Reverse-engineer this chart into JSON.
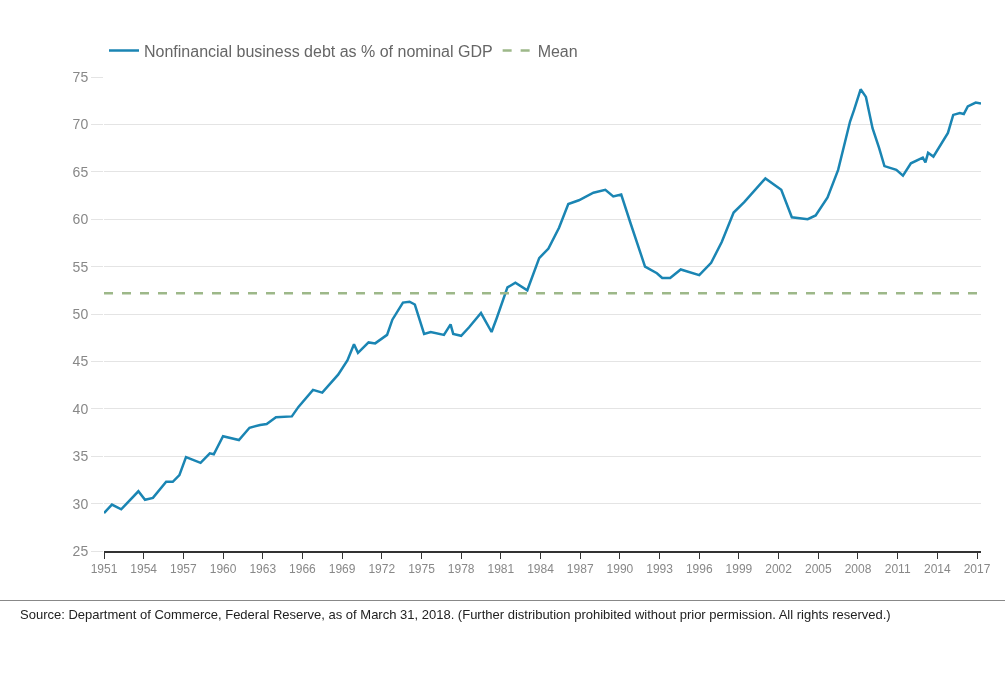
{
  "chart_data": {
    "type": "line",
    "x": [
      1951.0,
      1951.6,
      1952.3,
      1953.6,
      1954.1,
      1954.7,
      1955.7,
      1956.2,
      1956.7,
      1957.2,
      1958.3,
      1959.0,
      1959.3,
      1960.0,
      1961.2,
      1962.0,
      1962.8,
      1963.3,
      1964.0,
      1965.2,
      1965.7,
      1966.8,
      1967.5,
      1968.7,
      1969.4,
      1969.9,
      1970.2,
      1971.0,
      1971.5,
      1972.4,
      1972.8,
      1973.6,
      1974.1,
      1974.5,
      1975.2,
      1975.7,
      1976.7,
      1977.2,
      1977.4,
      1978.0,
      1978.6,
      1979.5,
      1980.3,
      1980.7,
      1981.5,
      1982.1,
      1983.0,
      1983.9,
      1984.6,
      1985.4,
      1986.1,
      1986.9,
      1988.0,
      1988.9,
      1989.5,
      1990.1,
      1990.8,
      1991.9,
      1992.8,
      1993.2,
      1993.8,
      1994.6,
      1996.0,
      1996.9,
      1997.7,
      1998.6,
      1999.4,
      2001.0,
      2002.2,
      2003.0,
      2004.2,
      2004.8,
      2005.7,
      2006.5,
      2007.4,
      2007.7,
      2008.2,
      2008.6,
      2009.1,
      2009.6,
      2010.0,
      2010.9,
      2011.4,
      2012.0,
      2012.9,
      2013.1,
      2013.3,
      2013.7,
      2014.8,
      2015.2,
      2015.7,
      2016.0,
      2016.3,
      2016.9,
      2017.3
    ],
    "series": [
      {
        "name": "Nonfinancial business debt as % of nominal GDP",
        "color": "#1a85b3",
        "values": [
          29.0,
          29.9,
          29.4,
          31.3,
          30.4,
          30.6,
          32.3,
          32.3,
          33.0,
          34.9,
          34.3,
          35.3,
          35.2,
          37.1,
          36.7,
          38.0,
          38.3,
          38.4,
          39.1,
          39.2,
          40.2,
          42.0,
          41.7,
          43.6,
          45.1,
          46.8,
          45.9,
          47.0,
          46.9,
          47.8,
          49.4,
          51.2,
          51.3,
          51.0,
          47.9,
          48.1,
          47.8,
          48.9,
          47.9,
          47.7,
          48.6,
          50.1,
          48.1,
          49.6,
          52.8,
          53.3,
          52.5,
          55.9,
          56.9,
          59.1,
          61.6,
          62.0,
          62.8,
          63.1,
          62.4,
          62.6,
          59.6,
          55.0,
          54.3,
          53.8,
          53.8,
          54.7,
          54.1,
          55.4,
          57.6,
          60.7,
          61.8,
          64.3,
          63.1,
          60.2,
          60.0,
          60.4,
          62.3,
          65.2,
          70.3,
          71.5,
          73.7,
          72.9,
          69.6,
          67.5,
          65.6,
          65.2,
          64.6,
          65.9,
          66.5,
          66.0,
          67.0,
          66.6,
          69.1,
          71.0,
          71.2,
          71.1,
          71.9,
          72.3,
          72.2
        ]
      }
    ],
    "ref_lines": [
      {
        "axis": "y",
        "value": 52.2,
        "label": "Mean",
        "color": "#9db889",
        "line_style": "dashed"
      }
    ],
    "xlim": [
      1951,
      2017.3
    ],
    "xticks": [
      1951,
      1954,
      1957,
      1960,
      1963,
      1966,
      1969,
      1972,
      1975,
      1978,
      1981,
      1984,
      1987,
      1990,
      1993,
      1996,
      1999,
      2002,
      2005,
      2008,
      2011,
      2014,
      2017
    ],
    "ylim": [
      25,
      75
    ],
    "yticks": [
      25,
      30,
      35,
      40,
      45,
      50,
      55,
      60,
      65,
      70,
      75
    ],
    "grid": "y",
    "legend": "top left",
    "marker": "none",
    "line_style": "solid",
    "annotations": [
      "Source: Department of Commerce, Federal Reserve, as of March 31, 2018. (Further distribution prohibited without prior permission. All rights reserved.)"
    ]
  }
}
